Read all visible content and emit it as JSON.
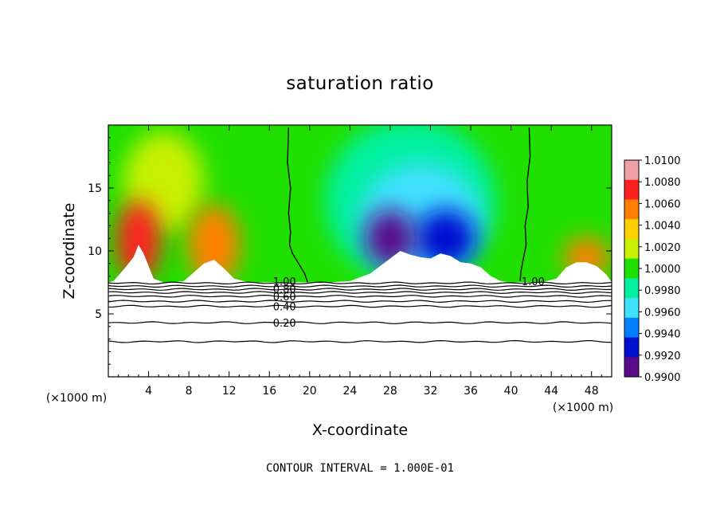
{
  "chart_data": {
    "type": "heatmap",
    "title": "saturation ratio",
    "xlabel": "X-coordinate",
    "ylabel": "Z-coordinate",
    "x_unit_label": "(×1000 m)",
    "x_unit_label_right": "(×1000 m)",
    "xlim": [
      0,
      50
    ],
    "ylim": [
      0,
      20
    ],
    "x_ticks": [
      4,
      8,
      12,
      16,
      20,
      24,
      28,
      32,
      36,
      40,
      44,
      48
    ],
    "y_ticks": [
      5,
      10,
      15
    ],
    "note": "CONTOUR INTERVAL = 1.000E-01",
    "colorbar": {
      "labels": [
        "1.0100",
        "1.0080",
        "1.0060",
        "1.0040",
        "1.0020",
        "1.0000",
        "0.9980",
        "0.9960",
        "0.9940",
        "0.9920",
        "0.9900"
      ],
      "colors": [
        "#f0a0a8",
        "#ff2020",
        "#ff8000",
        "#ffd000",
        "#c8f000",
        "#20e000",
        "#00f0a0",
        "#40e0ff",
        "#0080ff",
        "#0010d0",
        "#5a0a8c"
      ]
    },
    "contour_labels": [
      {
        "text": "1.00",
        "x": 17.5,
        "y": 7.6
      },
      {
        "text": "0.80",
        "x": 17.5,
        "y": 7.0
      },
      {
        "text": "0.60",
        "x": 17.5,
        "y": 6.4
      },
      {
        "text": "0.40",
        "x": 17.5,
        "y": 5.6
      },
      {
        "text": "0.20",
        "x": 17.5,
        "y": 4.3
      },
      {
        "text": "1.00",
        "x": 42.2,
        "y": 7.6
      }
    ],
    "contour_lines_z": [
      7.45,
      7.2,
      6.95,
      6.7,
      6.4,
      6.0,
      5.6,
      4.3,
      2.8
    ],
    "white_region_top": {
      "x": [
        0,
        0.5,
        1.5,
        2.5,
        3.0,
        3.5,
        4.5,
        5.5,
        6.5,
        7.5,
        8.5,
        9.5,
        10.5,
        11.5,
        12.5,
        14,
        18,
        22,
        24,
        25,
        26,
        27,
        28,
        29,
        30,
        31,
        32,
        33,
        34,
        35,
        36,
        37,
        38,
        39,
        40,
        43,
        44.5,
        45.5,
        46.5,
        47.5,
        48.5,
        49.5,
        50
      ],
      "z": [
        7.5,
        7.6,
        8.5,
        9.5,
        10.5,
        9.8,
        7.8,
        7.5,
        7.5,
        7.6,
        8.3,
        9.0,
        9.3,
        8.6,
        7.8,
        7.5,
        7.5,
        7.5,
        7.6,
        7.9,
        8.2,
        8.8,
        9.4,
        10.0,
        9.7,
        9.5,
        9.4,
        9.8,
        9.6,
        9.1,
        9.0,
        8.7,
        8.0,
        7.6,
        7.5,
        7.5,
        7.8,
        8.7,
        9.1,
        9.1,
        8.8,
        8.1,
        7.5
      ]
    },
    "dryline_left": {
      "x": [
        17.9,
        17.8,
        18.1,
        17.9,
        18.1,
        18.0,
        18.3,
        18.9,
        19.5,
        19.8
      ],
      "z": [
        19.8,
        17.0,
        15.0,
        13.0,
        11.5,
        10.5,
        9.8,
        9.0,
        8.2,
        7.5
      ]
    },
    "dryline_right": {
      "x": [
        41.8,
        41.9,
        41.6,
        41.7,
        41.4,
        41.5,
        41.2,
        41.0,
        40.9
      ],
      "z": [
        19.8,
        17.5,
        15.5,
        13.5,
        12.0,
        10.5,
        9.3,
        8.4,
        7.6
      ]
    },
    "field_blobs": [
      {
        "x": 3.0,
        "z": 10.8,
        "rx": 2.2,
        "rz": 3.2,
        "value": 1.009
      },
      {
        "x": 10.5,
        "z": 10.5,
        "rx": 2.6,
        "rz": 3.2,
        "value": 1.0065
      },
      {
        "x": 47.5,
        "z": 9.5,
        "rx": 2.3,
        "rz": 1.6,
        "value": 1.007
      },
      {
        "x": 5.5,
        "z": 15.5,
        "rx": 4.0,
        "rz": 4.0,
        "value": 1.0028
      },
      {
        "x": 28.0,
        "z": 11.0,
        "rx": 2.5,
        "rz": 2.3,
        "value": 0.9905
      },
      {
        "x": 33.5,
        "z": 11.0,
        "rx": 3.0,
        "rz": 2.3,
        "value": 0.9925
      },
      {
        "x": 31.0,
        "z": 12.5,
        "rx": 6.0,
        "rz": 4.5,
        "value": 0.995
      },
      {
        "x": 30.0,
        "z": 14.0,
        "rx": 8.5,
        "rz": 6.5,
        "value": 0.997
      }
    ]
  }
}
